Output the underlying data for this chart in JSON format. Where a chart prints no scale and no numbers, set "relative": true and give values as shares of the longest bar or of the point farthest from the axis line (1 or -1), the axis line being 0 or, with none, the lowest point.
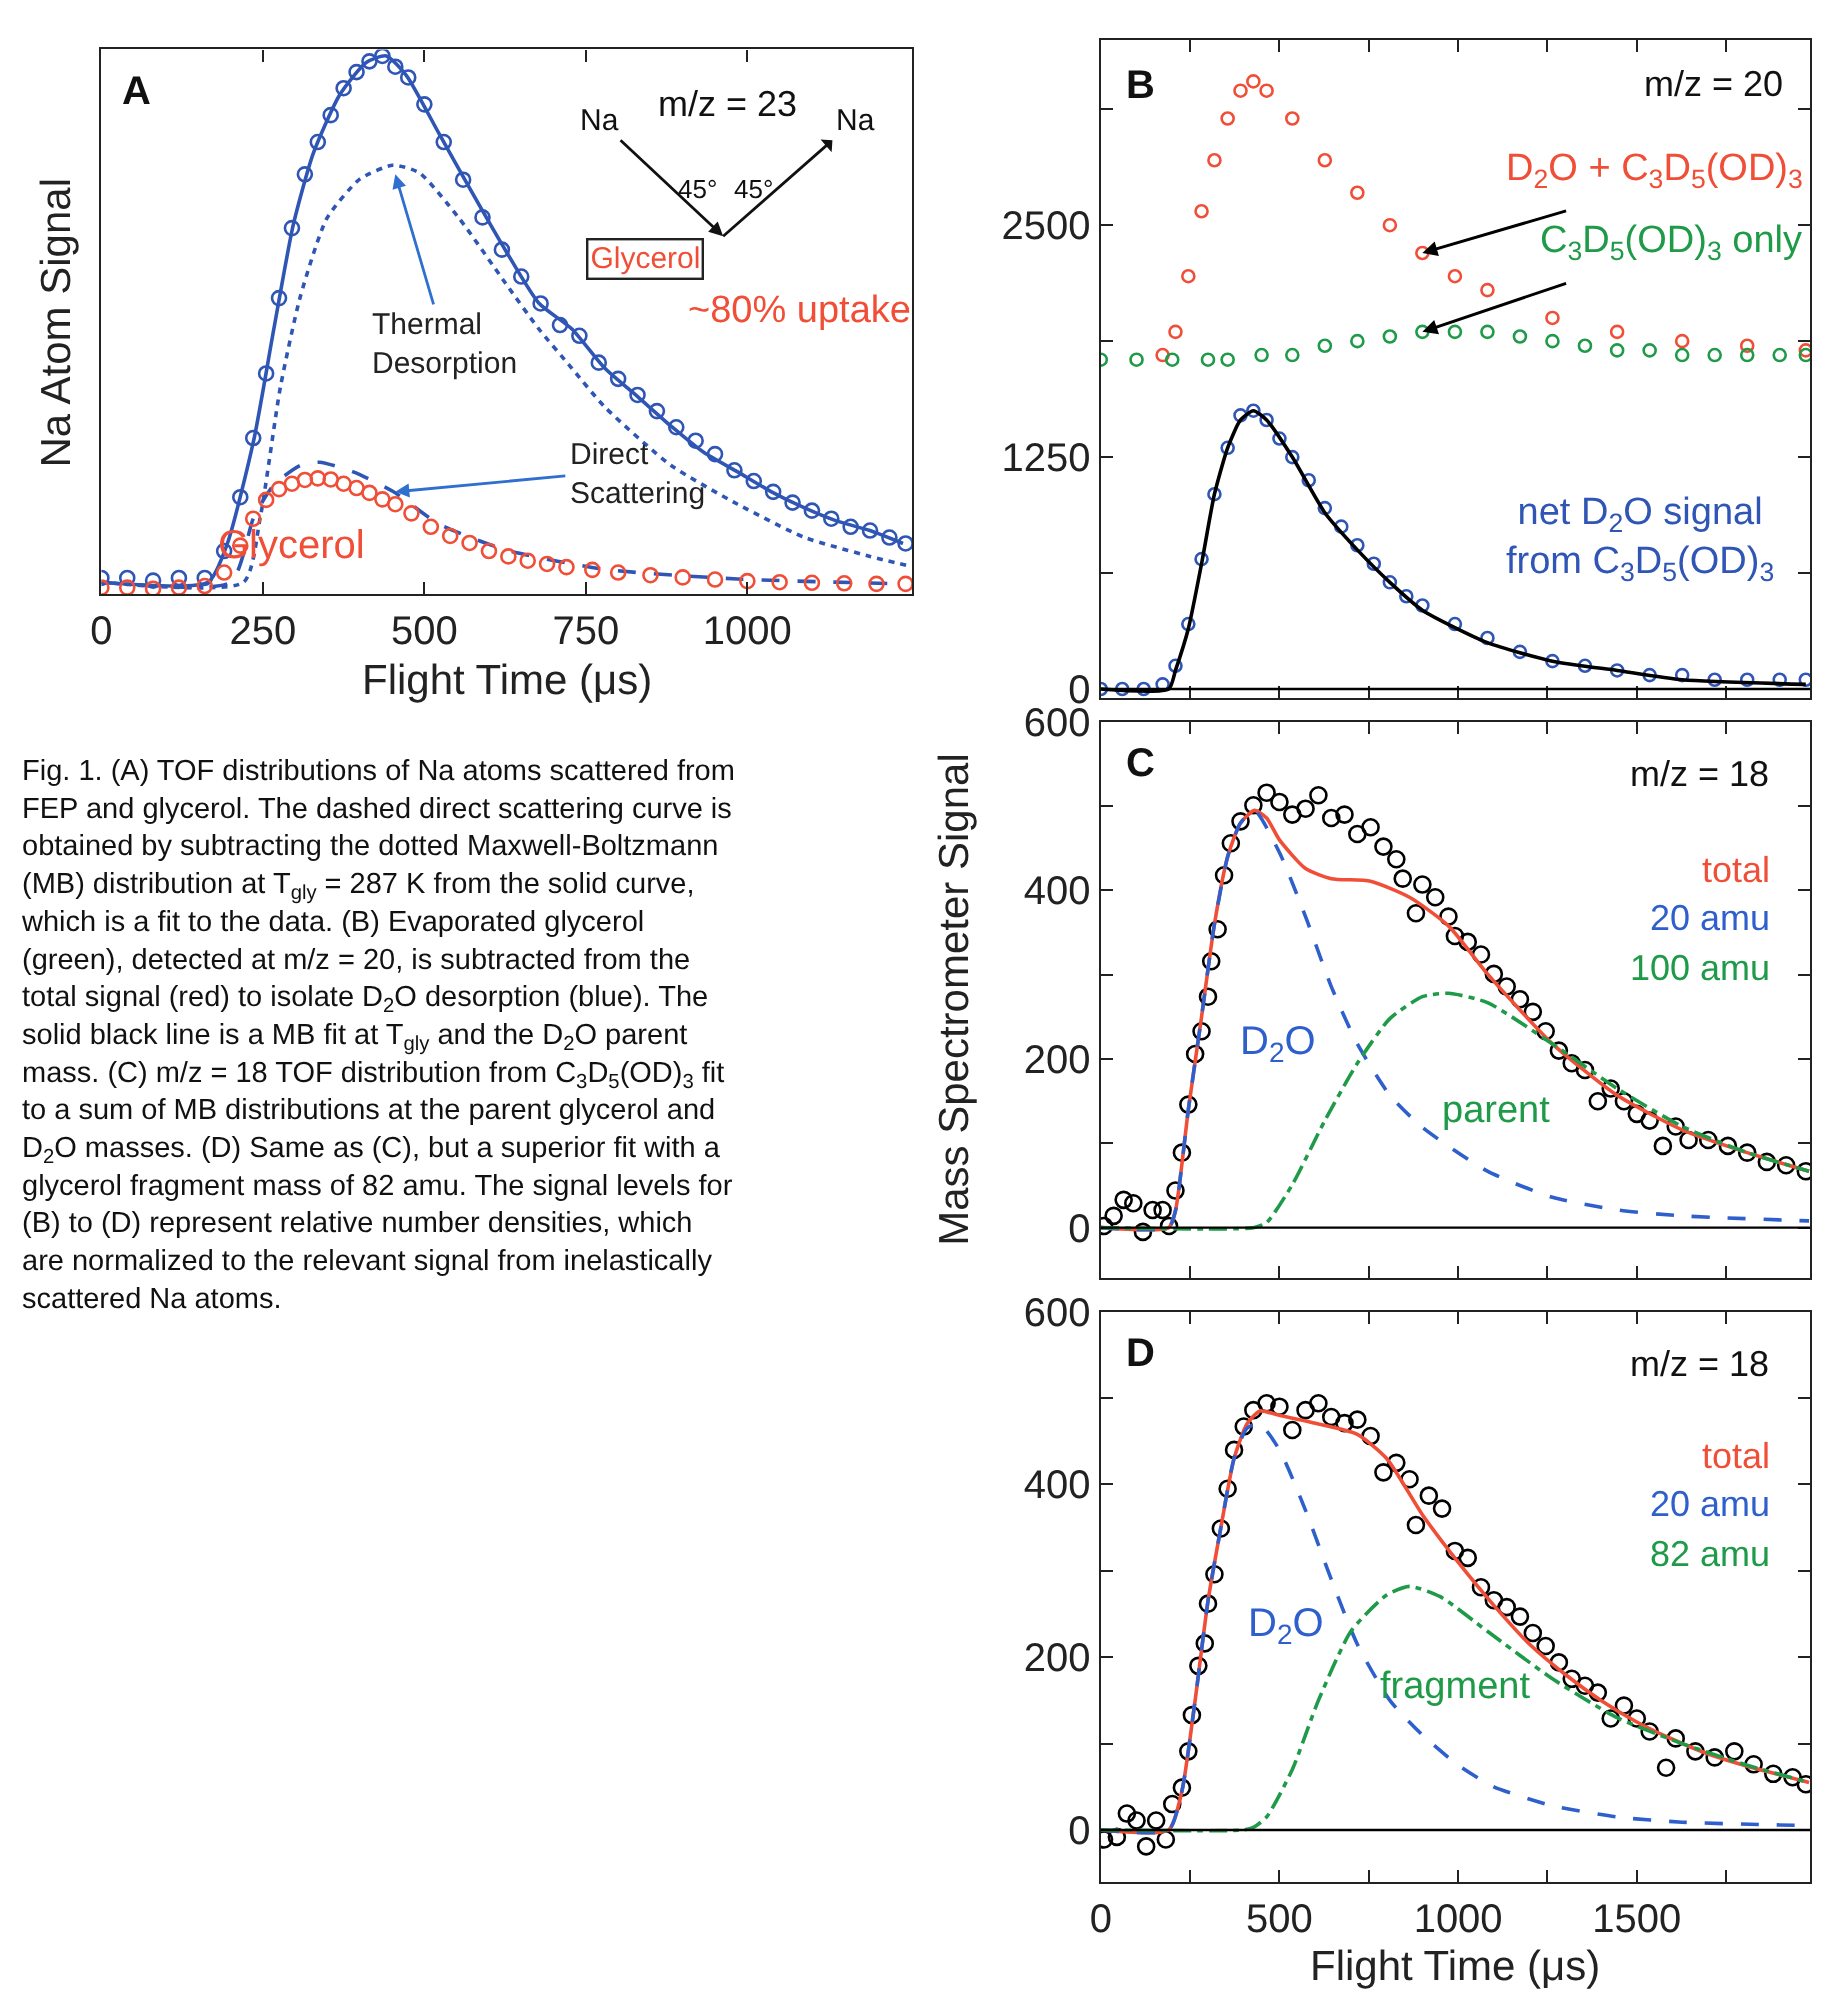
{
  "chart_data": [
    {
      "type": "line",
      "relative": true,
      "xlabel": "Flight Time (μs)",
      "ylabel": "Na Atom Signal",
      "xlim": [
        0,
        1255
      ],
      "xticks": [
        0,
        250,
        500,
        750,
        1000
      ],
      "series": [
        {
          "type": "scatter",
          "color": "#2f55b5",
          "marker": "circle",
          "x": [
            0,
            40,
            80,
            120,
            160,
            190,
            215,
            235,
            255,
            275,
            295,
            315,
            335,
            355,
            375,
            395,
            415,
            435,
            455,
            475,
            500,
            530,
            560,
            590,
            620,
            650,
            680,
            710,
            740,
            770,
            800,
            830,
            860,
            890,
            920,
            950,
            980,
            1010,
            1040,
            1070,
            1100,
            1130,
            1160,
            1190,
            1220,
            1245
          ],
          "values": [
            0.03,
            0.03,
            0.025,
            0.03,
            0.03,
            0.08,
            0.18,
            0.29,
            0.41,
            0.55,
            0.68,
            0.78,
            0.84,
            0.89,
            0.94,
            0.97,
            0.99,
            1.0,
            0.98,
            0.96,
            0.91,
            0.84,
            0.77,
            0.7,
            0.64,
            0.59,
            0.54,
            0.5,
            0.48,
            0.43,
            0.4,
            0.37,
            0.34,
            0.31,
            0.285,
            0.26,
            0.23,
            0.21,
            0.19,
            0.17,
            0.155,
            0.14,
            0.125,
            0.118,
            0.105,
            0.094
          ]
        },
        {
          "type": "line",
          "color": "#2f55b5",
          "line_style": "solid",
          "x": [
            0,
            165,
            195,
            236,
            267,
            297,
            328,
            369,
            410,
            441,
            472,
            523,
            574,
            626,
            677,
            728,
            779,
            831,
            882,
            933,
            985,
            1036,
            1087,
            1138,
            1190,
            1241
          ],
          "values": [
            0.022,
            0.022,
            0.094,
            0.287,
            0.493,
            0.686,
            0.819,
            0.928,
            0.988,
            1.0,
            0.964,
            0.855,
            0.746,
            0.638,
            0.541,
            0.493,
            0.42,
            0.366,
            0.312,
            0.263,
            0.227,
            0.191,
            0.161,
            0.136,
            0.118,
            0.094
          ]
        },
        {
          "type": "line",
          "color": "#2f55b5",
          "line_style": "dotted",
          "x": [
            0,
            220,
            246,
            277,
            308,
            349,
            400,
            451,
            492,
            554,
            626,
            677,
            728,
            779,
            882,
            985,
            1087,
            1190,
            1251
          ],
          "values": [
            0.022,
            0.022,
            0.143,
            0.384,
            0.553,
            0.698,
            0.771,
            0.797,
            0.783,
            0.698,
            0.577,
            0.493,
            0.42,
            0.348,
            0.239,
            0.167,
            0.106,
            0.07,
            0.052
          ]
        },
        {
          "type": "line",
          "color": "#2f55b5",
          "line_style": "dashed",
          "x": [
            0,
            200,
            236,
            267,
            308,
            338,
            390,
            451,
            523,
            626,
            779,
            985,
            1241
          ],
          "values": [
            0.022,
            0.022,
            0.143,
            0.203,
            0.239,
            0.245,
            0.227,
            0.191,
            0.13,
            0.082,
            0.046,
            0.028,
            0.019
          ]
        },
        {
          "type": "scatter",
          "name": "Glycerol",
          "color": "#f04e37",
          "marker": "circle",
          "x": [
            0,
            40,
            80,
            120,
            160,
            190,
            215,
            235,
            255,
            275,
            295,
            315,
            335,
            355,
            375,
            395,
            415,
            435,
            455,
            480,
            510,
            540,
            570,
            600,
            630,
            660,
            690,
            720,
            760,
            800,
            850,
            900,
            950,
            1000,
            1050,
            1100,
            1150,
            1200,
            1245
          ],
          "values": [
            0.012,
            0.012,
            0.01,
            0.012,
            0.015,
            0.04,
            0.09,
            0.14,
            0.175,
            0.195,
            0.205,
            0.212,
            0.215,
            0.213,
            0.205,
            0.197,
            0.188,
            0.176,
            0.167,
            0.15,
            0.125,
            0.108,
            0.095,
            0.08,
            0.07,
            0.062,
            0.056,
            0.05,
            0.045,
            0.04,
            0.035,
            0.031,
            0.027,
            0.024,
            0.022,
            0.021,
            0.02,
            0.019,
            0.019
          ]
        }
      ],
      "annotations": [
        "A",
        "m/z = 23",
        "Na",
        "45°",
        "45°",
        "Na",
        "Glycerol",
        "~80% uptake",
        {
          "text": "Thermal Desorption",
          "x": 455,
          "y": 0.78
        },
        {
          "text": "Direct Scattering",
          "x": 455,
          "y": 0.19
        },
        "Fig. 1. (A) TOF distributions of Na atoms scattered from FEP and glycerol. The dashed direct scattering curve is obtained by subtracting the dotted Maxwell-Boltzmann (MB) distribution at T$_{gly}$ = 287 K from the solid curve, which is a fit to the data. (B) Evaporated glycerol (green), detected at m/z = 20, is subtracted from the total signal (red) to isolate D$_{2}$O desorption (blue). The solid black line is a MB fit at T$_{gly}$ and the D$_{2}$O parent mass. (C) m/z = 18 TOF distribution from C$_{3}$D$_{5}$(OD)$_{3}$ fit to a sum of MB distributions at the parent glycerol and D$_{2}$O masses. (D) Same as (C), but a superior fit with a glycerol fragment mass of 82 amu. The signal levels for (B) to (D) represent relative number densities, which are normalized to the relevant signal from inelastically scattered Na atoms."
      ]
    },
    {
      "type": "line",
      "tick_labels": "y",
      "xlim": [
        0,
        1985
      ],
      "xticks": [
        0,
        250,
        500,
        750,
        1000,
        1250,
        1500,
        1750
      ],
      "ylim": [
        -50,
        3500
      ],
      "yticks": [
        0,
        {
          "value": 625,
          "label": null
        },
        1250,
        {
          "value": 1875,
          "label": null
        },
        2500,
        {
          "value": 3125,
          "label": null
        }
      ],
      "ref_lines": [
        {
          "axis": "y",
          "value": 0,
          "color": "#000000"
        }
      ],
      "series": [
        {
          "type": "scatter",
          "name": "D$_{2}$O + C$_{3}$D$_{5}$(OD)$_{3}$",
          "color": "#f04e37",
          "marker": "circle",
          "x": [
            173,
            209,
            245,
            282,
            318,
            355,
            391,
            427,
            464,
            536,
            627,
            718,
            809,
            900,
            991,
            1082,
            1264,
            1445,
            1627,
            1809,
            1973
          ],
          "values": [
            1800,
            1925,
            2225,
            2575,
            2850,
            3075,
            3225,
            3275,
            3225,
            3075,
            2850,
            2675,
            2500,
            2350,
            2225,
            2150,
            2000,
            1925,
            1875,
            1850,
            1825
          ]
        },
        {
          "type": "scatter",
          "name": "C$_{3}$D$_{5}$(OD)$_{3}$ only",
          "color": "#1f9a48",
          "marker": "circle",
          "x": [
            0,
            100,
            200,
            300,
            355,
            450,
            536,
            627,
            718,
            809,
            900,
            991,
            1082,
            1173,
            1264,
            1355,
            1445,
            1536,
            1627,
            1718,
            1809,
            1900,
            1973
          ],
          "values": [
            1775,
            1775,
            1775,
            1775,
            1775,
            1800,
            1800,
            1850,
            1875,
            1900,
            1925,
            1925,
            1925,
            1900,
            1875,
            1850,
            1825,
            1825,
            1800,
            1800,
            1800,
            1800,
            1800
          ]
        },
        {
          "type": "scatter",
          "name": "net D$_{2}$O signal from C$_{3}$D$_{5}$(OD)$_{3}$",
          "color": "#2f55b5",
          "marker": "circle",
          "x": [
            0,
            60,
            120,
            173,
            209,
            245,
            282,
            318,
            355,
            391,
            427,
            464,
            500,
            536,
            582,
            627,
            673,
            718,
            764,
            809,
            855,
            900,
            991,
            1082,
            1173,
            1264,
            1355,
            1445,
            1536,
            1627,
            1718,
            1809,
            1900,
            1973
          ],
          "values": [
            0,
            0,
            0,
            25,
            125,
            350,
            700,
            1050,
            1300,
            1475,
            1500,
            1450,
            1350,
            1250,
            1125,
            975,
            875,
            775,
            675,
            575,
            500,
            450,
            350,
            275,
            200,
            150,
            125,
            100,
            75,
            75,
            50,
            50,
            50,
            50
          ]
        },
        {
          "type": "line",
          "color": "#000000",
          "line_style": "solid",
          "x": [
            0,
            190,
            209,
            245,
            282,
            318,
            355,
            391,
            427,
            464,
            536,
            627,
            718,
            809,
            900,
            1082,
            1264,
            1445,
            1627,
            1973
          ],
          "values": [
            0,
            0,
            100,
            325,
            675,
            1050,
            1300,
            1450,
            1500,
            1450,
            1250,
            950,
            750,
            575,
            425,
            250,
            150,
            100,
            50,
            25
          ]
        }
      ],
      "annotations": [
        "B",
        "m/z = 20"
      ]
    },
    {
      "type": "line",
      "tick_labels": "y",
      "ylabel": "Mass Spectrometer Signal",
      "xlim": [
        0,
        1985
      ],
      "xticks": [
        0,
        250,
        500,
        750,
        1000,
        1250,
        1500,
        1750
      ],
      "ylim": [
        -60,
        600
      ],
      "yticks": [
        0,
        {
          "value": 100,
          "label": null
        },
        200,
        {
          "value": 300,
          "label": null
        },
        400,
        {
          "value": 500,
          "label": null
        },
        600
      ],
      "ref_lines": [
        {
          "axis": "y",
          "value": 0,
          "color": "#000000"
        }
      ],
      "series": [
        {
          "type": "scatter",
          "color": "#000000",
          "marker": "circle",
          "x": [
            9,
            36,
            64,
            91,
            118,
            145,
            173,
            191,
            209,
            227,
            245,
            264,
            282,
            300,
            309,
            327,
            345,
            364,
            391,
            427,
            464,
            500,
            536,
            573,
            609,
            645,
            682,
            718,
            755,
            791,
            827,
            845,
            882,
            900,
            936,
            973,
            991,
            1027,
            1064,
            1100,
            1136,
            1173,
            1209,
            1245,
            1282,
            1318,
            1355,
            1391,
            1427,
            1464,
            1500,
            1536,
            1573,
            1609,
            1645,
            1700,
            1755,
            1809,
            1864,
            1918,
            1973
          ],
          "values": [
            2,
            14,
            33,
            29,
            -5,
            21,
            21,
            2,
            44,
            89,
            146,
            206,
            233,
            274,
            316,
            354,
            418,
            456,
            482,
            501,
            516,
            505,
            490,
            497,
            513,
            486,
            490,
            467,
            475,
            452,
            437,
            414,
            373,
            407,
            392,
            369,
            346,
            339,
            324,
            301,
            286,
            271,
            256,
            233,
            210,
            195,
            187,
            150,
            165,
            150,
            135,
            127,
            97,
            120,
            104,
            104,
            97,
            89,
            78,
            74,
            67
          ]
        },
        {
          "type": "line",
          "name": "total",
          "color": "#f04e37",
          "line_style": "solid",
          "x": [
            0,
            190,
            209,
            245,
            282,
            318,
            355,
            391,
            430,
            464,
            500,
            573,
            645,
            755,
            864,
            973,
            1082,
            1264,
            1445,
            1627,
            1809,
            1982
          ],
          "values": [
            0,
            0,
            20,
            140,
            250,
            360,
            440,
            480,
            495,
            486,
            460,
            426,
            414,
            411,
            392,
            358,
            301,
            218,
            157,
            116,
            89,
            67
          ]
        },
        {
          "type": "line",
          "name": "20 amu",
          "color": "#2f5fcc",
          "line_style": "dashed",
          "x": [
            0,
            190,
            209,
            245,
            282,
            318,
            355,
            391,
            430,
            500,
            573,
            645,
            718,
            809,
            900,
            1082,
            1264,
            1445,
            1627,
            1982
          ],
          "values": [
            0,
            0,
            20,
            140,
            250,
            360,
            440,
            480,
            495,
            445,
            369,
            286,
            218,
            157,
            119,
            67,
            36,
            21,
            14,
            8
          ]
        },
        {
          "type": "line",
          "name": "100 amu",
          "color": "#1f9a48",
          "line_style": "dashdot",
          "x": [
            0,
            427,
            464,
            536,
            627,
            718,
            809,
            900,
            973,
            1082,
            1264,
            1445,
            1627,
            1809,
            1982
          ],
          "values": [
            0,
            0,
            6,
            51,
            127,
            195,
            248,
            274,
            278,
            267,
            218,
            165,
            120,
            89,
            67
          ]
        }
      ],
      "annotations": [
        "C",
        "m/z = 18",
        "D$_{2}$O",
        "parent"
      ]
    },
    {
      "type": "line",
      "xlabel": "Flight Time (μs)",
      "xlim": [
        0,
        1985
      ],
      "xticks": [
        0,
        {
          "value": 250,
          "label": null
        },
        500,
        {
          "value": 750,
          "label": null
        },
        1000,
        {
          "value": 1250,
          "label": null
        },
        1500,
        {
          "value": 1750,
          "label": null
        }
      ],
      "ylim": [
        -60,
        600
      ],
      "yticks": [
        0,
        {
          "value": 100,
          "label": null
        },
        200,
        {
          "value": 300,
          "label": null
        },
        400,
        {
          "value": 500,
          "label": null
        },
        600
      ],
      "ref_lines": [
        {
          "axis": "y",
          "value": 0,
          "color": "#000000"
        }
      ],
      "series": [
        {
          "type": "scatter",
          "color": "#000000",
          "marker": "circle",
          "x": [
            9,
            45,
            73,
            100,
            127,
            155,
            182,
            200,
            227,
            245,
            255,
            273,
            291,
            300,
            318,
            336,
            355,
            373,
            400,
            427,
            464,
            500,
            536,
            573,
            609,
            645,
            682,
            718,
            755,
            791,
            827,
            864,
            882,
            918,
            955,
            991,
            1027,
            1064,
            1100,
            1136,
            1173,
            1209,
            1245,
            1282,
            1318,
            1355,
            1391,
            1427,
            1464,
            1500,
            1536,
            1582,
            1609,
            1664,
            1718,
            1773,
            1827,
            1882,
            1936,
            1973
          ],
          "values": [
            -11,
            -8,
            19,
            11,
            -19,
            11,
            -11,
            30,
            49,
            91,
            133,
            190,
            216,
            262,
            296,
            349,
            395,
            440,
            467,
            486,
            494,
            490,
            463,
            486,
            494,
            478,
            471,
            475,
            456,
            414,
            425,
            406,
            353,
            387,
            372,
            323,
            315,
            281,
            266,
            258,
            247,
            228,
            213,
            194,
            175,
            167,
            159,
            129,
            144,
            129,
            114,
            72,
            106,
            91,
            84,
            91,
            76,
            65,
            61,
            53
          ]
        },
        {
          "type": "line",
          "name": "total",
          "color": "#f04e37",
          "line_style": "solid",
          "x": [
            0,
            190,
            227,
            264,
            300,
            336,
            373,
            409,
            445,
            500,
            609,
            718,
            800,
            900,
            1000,
            1100,
            1200,
            1300,
            1400,
            1500,
            1600,
            1700,
            1800,
            1982
          ],
          "values": [
            0,
            0,
            45,
            150,
            265,
            350,
            430,
            470,
            485,
            480,
            470,
            458,
            430,
            365,
            310,
            260,
            215,
            180,
            150,
            125,
            105,
            88,
            75,
            55
          ]
        },
        {
          "type": "line",
          "name": "20 amu",
          "color": "#2f5fcc",
          "line_style": "dashed",
          "x": [
            0,
            190,
            227,
            264,
            300,
            336,
            373,
            409,
            445,
            500,
            573,
            645,
            718,
            809,
            900,
            1000,
            1100,
            1264,
            1445,
            1627,
            1982
          ],
          "values": [
            0,
            0,
            45,
            150,
            265,
            350,
            430,
            465,
            470,
            440,
            370,
            290,
            215,
            150,
            110,
            75,
            50,
            28,
            15,
            9,
            5
          ]
        },
        {
          "type": "line",
          "name": "82 amu",
          "color": "#1f9a48",
          "line_style": "dashdot",
          "x": [
            0,
            400,
            427,
            464,
            536,
            609,
            700,
            800,
            864,
            950,
            1082,
            1264,
            1445,
            1627,
            1809,
            1982
          ],
          "values": [
            0,
            0,
            3,
            15,
            70,
            150,
            230,
            272,
            282,
            270,
            230,
            175,
            130,
            100,
            75,
            55
          ]
        }
      ],
      "annotations": [
        "D",
        "m/z = 18",
        "D$_{2}$O",
        "fragment"
      ]
    }
  ]
}
